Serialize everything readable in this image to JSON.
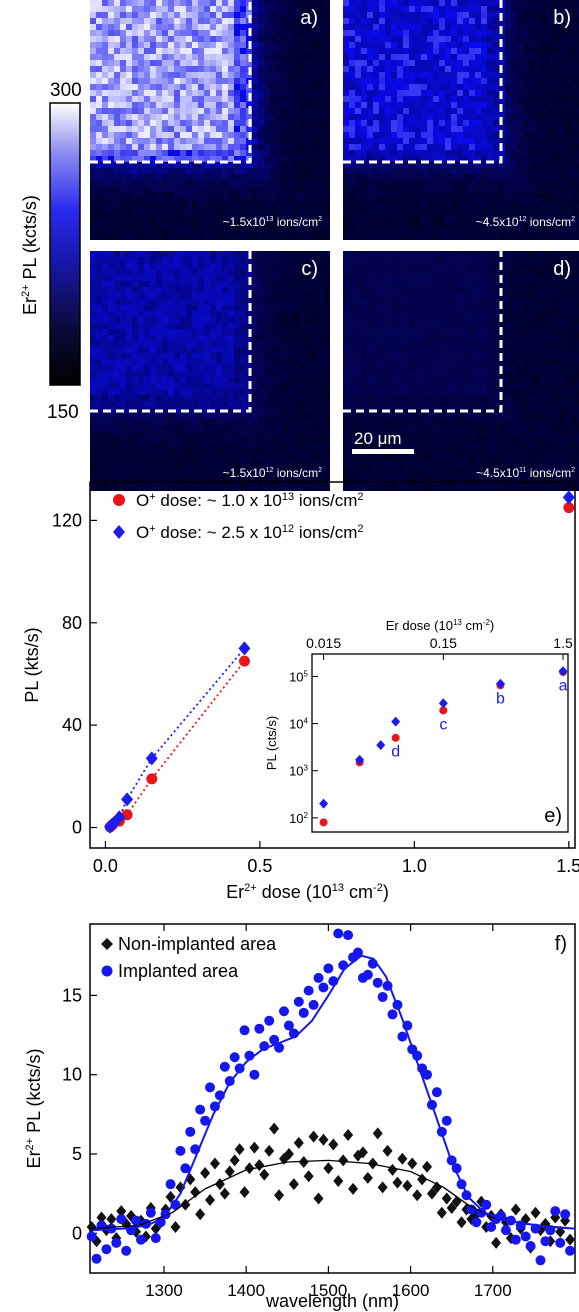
{
  "colorbar": {
    "label_main": "Er",
    "label_sup": "2+",
    "label_rest": " PL (kcts/s)",
    "max_label": "300",
    "min_label": "150",
    "colors": [
      "#000000",
      "#0a0a3a",
      "#1818b0",
      "#2a2aee",
      "#8a8af0",
      "#ffffff"
    ]
  },
  "maps": [
    {
      "letter": "a)",
      "dose_prefix": "~1.5x10",
      "dose_exp": "13",
      "dose_suffix": " ions/cm",
      "dose_sup2": "2",
      "level": 1.0
    },
    {
      "letter": "b)",
      "dose_prefix": "~4.5x10",
      "dose_exp": "12",
      "dose_suffix": " ions/cm",
      "dose_sup2": "2",
      "level": 0.55
    },
    {
      "letter": "c)",
      "dose_prefix": "~1.5x10",
      "dose_exp": "12",
      "dose_suffix": " ions/cm",
      "dose_sup2": "2",
      "level": 0.4
    },
    {
      "letter": "d)",
      "dose_prefix": "~4.5x10",
      "dose_exp": "11",
      "dose_suffix": " ions/cm",
      "dose_sup2": "2",
      "level": 0.12
    }
  ],
  "scalebar_label": "20 μm",
  "chart_data": [
    {
      "type": "scatter",
      "panel": "main",
      "xlabel_main": "Er",
      "xlabel_sup": "2+",
      "xlabel_rest": " dose (10",
      "xlabel_exp": "13",
      "xlabel_unit": " cm",
      "xlabel_unit_exp": "-2",
      "xlabel_close": ")",
      "ylabel": "PL (kts/s)",
      "xlim": [
        -0.05,
        1.52
      ],
      "ylim": [
        -8,
        135
      ],
      "xticks": [
        "0.0",
        "0.5",
        "1.0",
        "1.5"
      ],
      "xtick_values": [
        0,
        0.5,
        1.0,
        1.5
      ],
      "yticks": [
        "0",
        "40",
        "80",
        "120"
      ],
      "ytick_values": [
        0,
        40,
        80,
        120
      ],
      "series": [
        {
          "name_prefix": "O",
          "name_sup": "+",
          "name_rest": " dose: ~ 1.0 x 10",
          "name_exp": "13",
          "name_unit": " ions/cm",
          "name_unit_exp": "2",
          "color": "#e8161b",
          "marker": "circle",
          "x": [
            0.015,
            0.022,
            0.045,
            0.07,
            0.15,
            0.45,
            1.5
          ],
          "y": [
            0.2,
            1.0,
            2.5,
            5,
            19,
            65,
            125
          ]
        },
        {
          "name_prefix": "O",
          "name_sup": "+",
          "name_rest": " dose: ~ 2.5 x 10",
          "name_exp": "12",
          "name_unit": " ions/cm",
          "name_unit_exp": "2",
          "color": "#1c1cef",
          "marker": "diamond",
          "x": [
            0.015,
            0.022,
            0.03,
            0.045,
            0.07,
            0.15,
            0.45,
            1.5
          ],
          "y": [
            0.3,
            1.2,
            2.0,
            4,
            11,
            27,
            70,
            129
          ]
        }
      ]
    },
    {
      "type": "scatter",
      "panel": "inset",
      "letter": "e)",
      "top_label_main": "Er  dose (10",
      "top_label_exp": "13",
      "top_label_unit": " cm",
      "top_label_unit_exp": "-2",
      "top_label_close": ")",
      "ylabel": "PL (cts/s)",
      "x_scale": "log",
      "y_scale": "log",
      "xlim": [
        0.012,
        1.65
      ],
      "ylim": [
        50,
        300000
      ],
      "top_ticks": [
        "0.015",
        "0.15",
        "1.5"
      ],
      "top_tick_values": [
        0.015,
        0.15,
        1.5
      ],
      "yticks": [
        {
          "base": "10",
          "exp": "2"
        },
        {
          "base": "10",
          "exp": "3"
        },
        {
          "base": "10",
          "exp": "4"
        },
        {
          "base": "10",
          "exp": "5"
        }
      ],
      "ytick_values": [
        100,
        1000,
        10000,
        100000
      ],
      "series": [
        {
          "color": "#e8161b",
          "marker": "circle",
          "x": [
            0.015,
            0.03,
            0.06,
            0.15,
            0.45,
            1.5
          ],
          "y": [
            80,
            1500,
            5000,
            19000,
            65000,
            125000
          ]
        },
        {
          "color": "#1c1cef",
          "marker": "diamond",
          "x": [
            0.015,
            0.03,
            0.045,
            0.06,
            0.15,
            0.45,
            1.5
          ],
          "y": [
            200,
            1700,
            3500,
            11000,
            27000,
            70000,
            129000
          ]
        }
      ],
      "point_labels": [
        {
          "text": "d",
          "x": 0.06,
          "y": 2000
        },
        {
          "text": "c",
          "x": 0.15,
          "y": 7500
        },
        {
          "text": "b",
          "x": 0.45,
          "y": 27000
        },
        {
          "text": "a",
          "x": 1.5,
          "y": 50000
        }
      ]
    },
    {
      "type": "scatter",
      "panel": "spectrum",
      "letter": "f)",
      "xlabel": "wavelength (nm)",
      "ylabel_main": "Er",
      "ylabel_sup": "2+",
      "ylabel_rest": " PL (kcts/s)",
      "xlim": [
        1210,
        1800
      ],
      "ylim": [
        -2.5,
        19.5
      ],
      "xticks": [
        "1300",
        "1400",
        "1500",
        "1600",
        "1700"
      ],
      "xtick_values": [
        1300,
        1400,
        1500,
        1600,
        1700
      ],
      "yticks": [
        "0",
        "5",
        "10",
        "15"
      ],
      "ytick_values": [
        0,
        5,
        10,
        15
      ],
      "series": [
        {
          "name": "Non-implanted area",
          "color": "#111111",
          "marker": "diamond",
          "x": [
            1212,
            1218,
            1224,
            1230,
            1236,
            1242,
            1248,
            1254,
            1260,
            1266,
            1272,
            1278,
            1284,
            1290,
            1296,
            1302,
            1308,
            1314,
            1320,
            1326,
            1332,
            1338,
            1344,
            1350,
            1356,
            1362,
            1368,
            1374,
            1380,
            1386,
            1392,
            1398,
            1404,
            1410,
            1416,
            1422,
            1428,
            1434,
            1440,
            1446,
            1452,
            1458,
            1464,
            1470,
            1476,
            1482,
            1488,
            1494,
            1500,
            1506,
            1512,
            1518,
            1524,
            1530,
            1536,
            1542,
            1548,
            1554,
            1560,
            1566,
            1572,
            1578,
            1584,
            1590,
            1596,
            1602,
            1608,
            1614,
            1620,
            1626,
            1632,
            1638,
            1644,
            1650,
            1656,
            1662,
            1668,
            1674,
            1680,
            1686,
            1692,
            1698,
            1704,
            1710,
            1716,
            1722,
            1728,
            1734,
            1740,
            1746,
            1752,
            1758,
            1764,
            1770,
            1776,
            1782,
            1788,
            1794
          ],
          "y": [
            0.4,
            -0.5,
            1.0,
            0.2,
            0.9,
            -0.3,
            1.4,
            0.6,
            1.1,
            0.1,
            0.8,
            -0.2,
            1.6,
            0.3,
            0.7,
            1.5,
            2.3,
            0.4,
            2.9,
            1.8,
            3.4,
            2.6,
            1.2,
            3.8,
            2.1,
            4.4,
            3.1,
            2.5,
            3.9,
            4.6,
            5.3,
            2.6,
            4.1,
            5.4,
            4.3,
            3.7,
            5.2,
            6.6,
            2.4,
            4.7,
            5.0,
            3.1,
            5.7,
            4.5,
            3.6,
            6.1,
            2.2,
            5.9,
            4.1,
            5.6,
            3.3,
            4.6,
            6.2,
            2.8,
            4.9,
            5.1,
            3.5,
            4.4,
            6.3,
            2.9,
            5.2,
            4.0,
            3.2,
            4.7,
            3.0,
            4.4,
            2.4,
            3.4,
            4.2,
            2.5,
            2.9,
            1.3,
            2.2,
            1.6,
            2.0,
            0.7,
            1.5,
            0.9,
            1.2,
            2.0,
            0.4,
            1.1,
            -0.6,
            1.2,
            0.7,
            -0.3,
            1.5,
            0.3,
            0.9,
            -0.9,
            1.3,
            0.2,
            0.6,
            -0.5,
            1.0,
            0.1,
            0.8,
            -0.4
          ]
        },
        {
          "name": "Implanted area",
          "color": "#1616ee",
          "marker": "circle",
          "x": [
            1212,
            1218,
            1224,
            1230,
            1236,
            1242,
            1248,
            1254,
            1260,
            1266,
            1272,
            1278,
            1284,
            1290,
            1296,
            1302,
            1308,
            1314,
            1320,
            1326,
            1332,
            1338,
            1344,
            1350,
            1356,
            1362,
            1368,
            1374,
            1380,
            1386,
            1392,
            1398,
            1404,
            1410,
            1416,
            1422,
            1428,
            1434,
            1440,
            1446,
            1452,
            1458,
            1464,
            1470,
            1476,
            1482,
            1488,
            1494,
            1500,
            1506,
            1512,
            1518,
            1524,
            1530,
            1536,
            1542,
            1548,
            1554,
            1560,
            1566,
            1572,
            1578,
            1584,
            1590,
            1596,
            1602,
            1608,
            1614,
            1620,
            1626,
            1632,
            1638,
            1644,
            1650,
            1656,
            1662,
            1668,
            1674,
            1680,
            1686,
            1692,
            1698,
            1704,
            1710,
            1716,
            1722,
            1728,
            1734,
            1740,
            1746,
            1752,
            1758,
            1764,
            1770,
            1776,
            1782,
            1788,
            1794
          ],
          "y": [
            -0.2,
            -1.6,
            0.5,
            -1.0,
            0.3,
            -0.6,
            0.9,
            -1.1,
            0.2,
            0.8,
            -0.4,
            0.6,
            1.3,
            -0.3,
            0.7,
            1.2,
            3.1,
            1.8,
            5.2,
            4.1,
            6.4,
            5.3,
            7.8,
            7.1,
            9.2,
            8.0,
            8.7,
            10.5,
            9.6,
            11.1,
            10.4,
            12.8,
            11.2,
            10.0,
            12.9,
            11.8,
            13.4,
            12.2,
            11.7,
            14.0,
            13.1,
            12.6,
            14.6,
            13.9,
            15.3,
            14.4,
            16.1,
            15.5,
            16.7,
            15.9,
            18.9,
            16.9,
            18.8,
            17.4,
            17.7,
            16.1,
            16.3,
            17.0,
            15.8,
            14.9,
            15.6,
            13.8,
            14.4,
            12.4,
            13.1,
            11.6,
            11.2,
            10.4,
            10.0,
            8.1,
            8.9,
            6.4,
            7.1,
            4.6,
            4.1,
            3.1,
            2.4,
            1.5,
            0.7,
            1.3,
            1.8,
            0.4,
            0.9,
            1.1,
            0.2,
            0.8,
            -0.4,
            0.5,
            -0.2,
            -0.8,
            0.3,
            -1.7,
            -0.5,
            0.2,
            1.4,
            -0.6,
            1.2,
            -1.1
          ]
        }
      ],
      "fit": {
        "color": "#1616ee",
        "x": [
          1212,
          1250,
          1280,
          1300,
          1320,
          1340,
          1360,
          1380,
          1400,
          1420,
          1440,
          1460,
          1480,
          1500,
          1520,
          1540,
          1555,
          1570,
          1590,
          1610,
          1630,
          1650,
          1670,
          1690,
          1710,
          1740,
          1770,
          1800
        ],
        "y": [
          0.2,
          0.3,
          0.5,
          1.0,
          2.5,
          5.0,
          7.5,
          9.5,
          10.8,
          11.6,
          12.0,
          12.4,
          13.4,
          15.0,
          16.7,
          17.5,
          17.3,
          16.2,
          13.5,
          10.5,
          7.5,
          4.5,
          2.3,
          1.3,
          0.9,
          0.6,
          0.4,
          0.3
        ]
      },
      "fit_black": {
        "color": "#000000",
        "x": [
          1212,
          1270,
          1310,
          1350,
          1400,
          1450,
          1500,
          1550,
          1600,
          1640,
          1670,
          1700,
          1740,
          1800
        ],
        "y": [
          0.3,
          0.5,
          1.3,
          2.8,
          4.0,
          4.5,
          4.6,
          4.4,
          3.9,
          2.9,
          1.8,
          1.0,
          0.6,
          0.3
        ]
      }
    }
  ]
}
